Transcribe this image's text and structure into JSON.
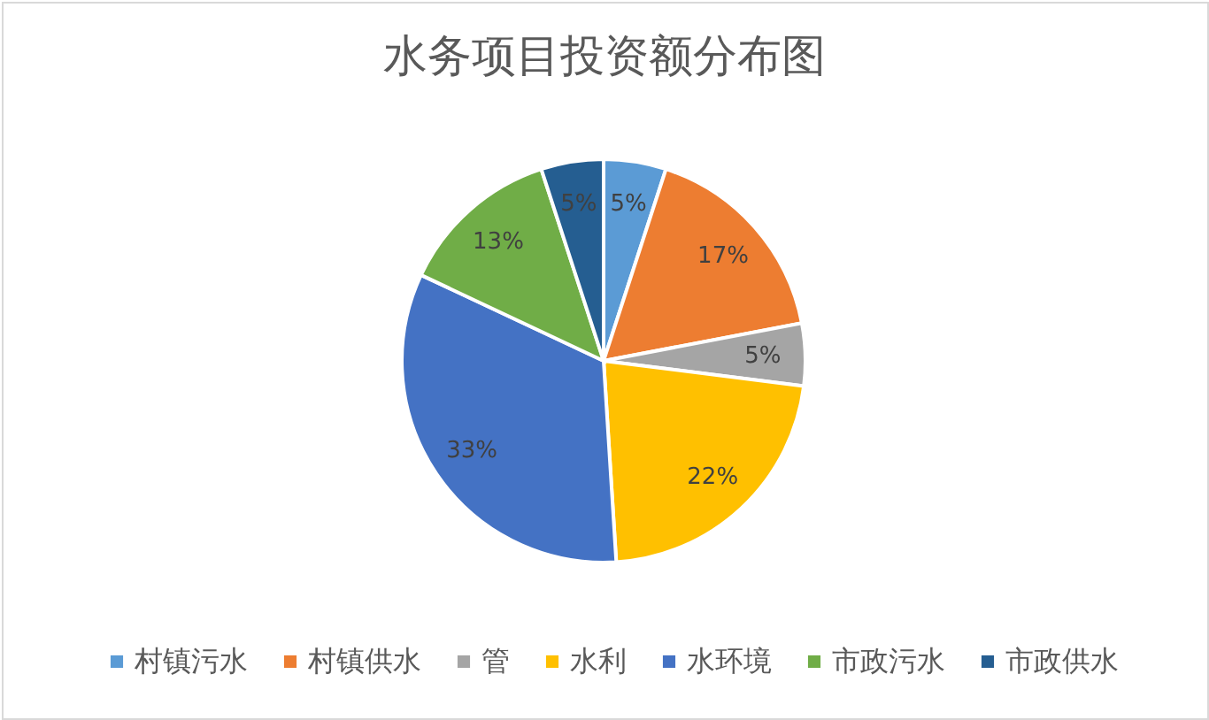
{
  "chart_data": {
    "type": "pie",
    "title": "水务项目投资额分布图",
    "categories": [
      "村镇污水",
      "村镇供水",
      "管",
      "水利",
      "水环境",
      "市政污水",
      "市政供水"
    ],
    "values": [
      5,
      17,
      5,
      22,
      33,
      13,
      5
    ],
    "colors": [
      "#5b9bd5",
      "#ed7d31",
      "#a5a5a5",
      "#ffc000",
      "#4472c4",
      "#70ad47",
      "#255e91"
    ],
    "value_labels": [
      "5%",
      "17%",
      "5%",
      "22%",
      "33%",
      "13%",
      "5%"
    ],
    "legend": "bottom"
  }
}
